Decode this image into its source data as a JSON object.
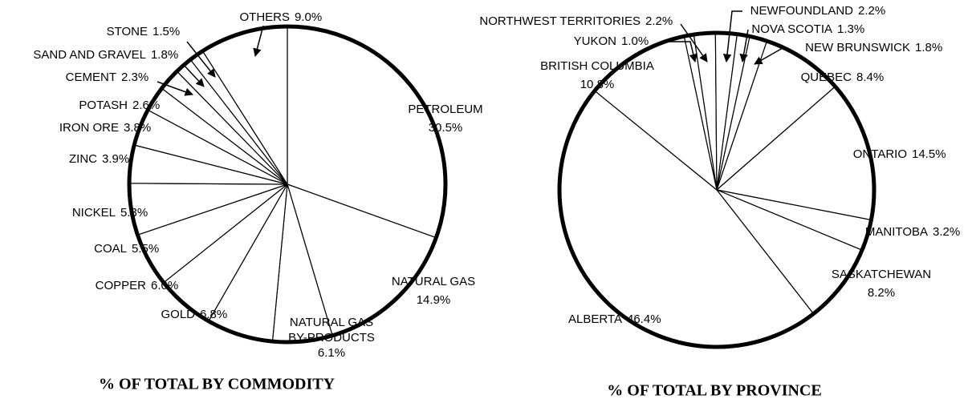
{
  "chart_data": [
    {
      "type": "pie",
      "title": "% OF TOTAL BY COMMODITY",
      "categories": [
        "PETROLEUM",
        "NATURAL GAS",
        "NATURAL GAS BY-PRODUCTS",
        "GOLD",
        "COPPER",
        "COAL",
        "NICKEL",
        "ZINC",
        "IRON ORE",
        "POTASH",
        "CEMENT",
        "SAND AND GRAVEL",
        "STONE",
        "OTHERS"
      ],
      "values": [
        30.5,
        14.9,
        6.1,
        6.8,
        6.0,
        5.5,
        5.3,
        3.9,
        3.8,
        2.6,
        2.3,
        1.8,
        1.5,
        9.0
      ],
      "value_labels": [
        "30.5%",
        "14.9%",
        "6.1%",
        "6.8%",
        "6.0%",
        "5.5%",
        "5.3%",
        "3.9%",
        "3.8%",
        "2.6%",
        "2.3%",
        "1.8%",
        "1.5%",
        "9.0%"
      ],
      "color": "#ffffff"
    },
    {
      "type": "pie",
      "title": "% OF TOTAL BY PROVINCE",
      "categories": [
        "YUKON",
        "NORTHWEST TERRITORIES",
        "NEWFOUNDLAND",
        "NOVA SCOTIA",
        "NEW BRUNSWICK",
        "QUEBEC",
        "ONTARIO",
        "MANITOBA",
        "SASKATCHEWAN",
        "ALBERTA",
        "BRITISH COLUMBIA"
      ],
      "values": [
        1.0,
        2.2,
        2.2,
        1.3,
        1.8,
        8.4,
        14.5,
        3.2,
        8.2,
        46.4,
        10.8
      ],
      "value_labels": [
        "1.0%",
        "2.2%",
        "2.2%",
        "1.3%",
        "1.8%",
        "8.4%",
        "14.5%",
        "3.2%",
        "8.2%",
        "46.4%",
        "10.8%"
      ],
      "color": "#ffffff"
    }
  ]
}
